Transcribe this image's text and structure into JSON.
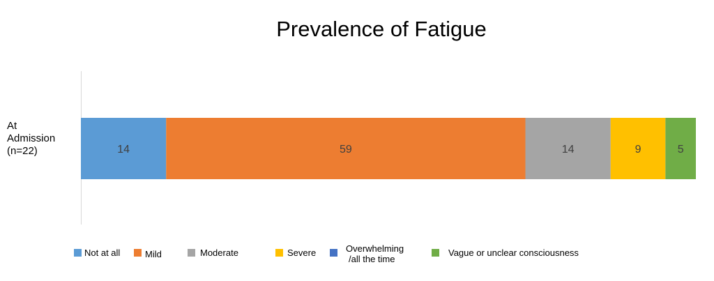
{
  "chart_data": {
    "type": "bar",
    "orientation": "horizontal",
    "stacked": true,
    "title": "Prevalence of Fatigue",
    "categories": [
      [
        "At",
        "Admission",
        "(n=22)"
      ]
    ],
    "series": [
      {
        "name": "Not at all",
        "values": [
          14
        ],
        "color": "#5b9bd5"
      },
      {
        "name": "Mild",
        "values": [
          59
        ],
        "color": "#ed7d31"
      },
      {
        "name": "Moderate",
        "values": [
          14
        ],
        "color": "#a5a5a5"
      },
      {
        "name": "Severe",
        "values": [
          9
        ],
        "color": "#ffc000"
      },
      {
        "name": "Overwhelming /all the time",
        "values": [
          0
        ],
        "color": "#4472c4"
      },
      {
        "name": "Vague or unclear consciousness",
        "values": [
          5
        ],
        "color": "#70ad47"
      }
    ],
    "legend_labels": [
      [
        "Not at all"
      ],
      [
        "Mild"
      ],
      [
        "Moderate"
      ],
      [
        "Severe"
      ],
      [
        "Overwhelming",
        "/all the time"
      ],
      [
        "Vague or unclear consciousness"
      ]
    ],
    "xlim": [
      0,
      101
    ],
    "grid": false,
    "legend_position": "bottom",
    "label_color": "#404040"
  }
}
